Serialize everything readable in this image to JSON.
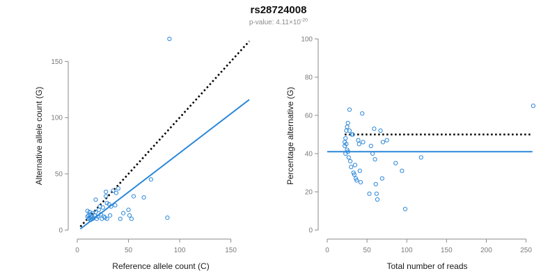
{
  "header": {
    "title": "rs28724008",
    "subtitle_prefix": "p-value: 4.11×10",
    "subtitle_exponent": "-20"
  },
  "colors": {
    "accent": "#2b87d8",
    "reference": "#000000",
    "axis": "#8a8a8a"
  },
  "chart_data": [
    {
      "type": "scatter",
      "title": "",
      "xlabel": "Reference allele count (C)",
      "ylabel": "Alternative allele count (G)",
      "xlim": [
        0,
        170
      ],
      "ylim": [
        0,
        170
      ],
      "x_ticks": [
        0,
        50,
        100,
        150
      ],
      "y_ticks": [
        0,
        50,
        100,
        150
      ],
      "x_tick_labels": [
        "0",
        "50",
        "100",
        "150"
      ],
      "y_tick_labels": [
        "0",
        "50",
        "100",
        "150"
      ],
      "grid": false,
      "legend": "none",
      "reference_line": {
        "style": "dotted",
        "color": "#000000",
        "from": [
          3,
          3
        ],
        "to": [
          168,
          168
        ]
      },
      "fit_line": {
        "style": "solid",
        "color": "#2b87d8",
        "from": [
          3,
          1
        ],
        "to": [
          168,
          116
        ]
      },
      "points": [
        {
          "x": 90,
          "y": 170
        },
        {
          "x": 88,
          "y": 11
        },
        {
          "x": 72,
          "y": 45
        },
        {
          "x": 65,
          "y": 29
        },
        {
          "x": 55,
          "y": 30
        },
        {
          "x": 53,
          "y": 10
        },
        {
          "x": 51,
          "y": 13
        },
        {
          "x": 50,
          "y": 18
        },
        {
          "x": 45,
          "y": 15
        },
        {
          "x": 42,
          "y": 10
        },
        {
          "x": 40,
          "y": 37
        },
        {
          "x": 38,
          "y": 33
        },
        {
          "x": 37,
          "y": 22
        },
        {
          "x": 35,
          "y": 35
        },
        {
          "x": 33,
          "y": 21
        },
        {
          "x": 32,
          "y": 13
        },
        {
          "x": 31,
          "y": 23
        },
        {
          "x": 29,
          "y": 24
        },
        {
          "x": 29,
          "y": 10
        },
        {
          "x": 28,
          "y": 34
        },
        {
          "x": 28,
          "y": 30
        },
        {
          "x": 27,
          "y": 11
        },
        {
          "x": 26,
          "y": 12
        },
        {
          "x": 25,
          "y": 20
        },
        {
          "x": 24,
          "y": 10
        },
        {
          "x": 23,
          "y": 14
        },
        {
          "x": 22,
          "y": 21
        },
        {
          "x": 21,
          "y": 18
        },
        {
          "x": 20,
          "y": 12
        },
        {
          "x": 19,
          "y": 10
        },
        {
          "x": 18,
          "y": 27
        },
        {
          "x": 18,
          "y": 16
        },
        {
          "x": 17,
          "y": 13
        },
        {
          "x": 16,
          "y": 11
        },
        {
          "x": 15,
          "y": 10
        },
        {
          "x": 15,
          "y": 15
        },
        {
          "x": 14,
          "y": 12
        },
        {
          "x": 13,
          "y": 14
        },
        {
          "x": 13,
          "y": 9
        },
        {
          "x": 12,
          "y": 11
        },
        {
          "x": 12,
          "y": 16
        },
        {
          "x": 11,
          "y": 13
        },
        {
          "x": 11,
          "y": 10
        },
        {
          "x": 10,
          "y": 17
        },
        {
          "x": 10,
          "y": 12
        }
      ]
    },
    {
      "type": "scatter",
      "title": "",
      "xlabel": "Total number of reads",
      "ylabel": "Percentage alternative (G)",
      "xlim": [
        0,
        260
      ],
      "ylim": [
        0,
        100
      ],
      "x_ticks": [
        0,
        50,
        100,
        150,
        200,
        250
      ],
      "y_ticks": [
        0,
        20,
        40,
        60,
        80,
        100
      ],
      "x_tick_labels": [
        "0",
        "50",
        "100",
        "150",
        "200",
        "250"
      ],
      "y_tick_labels": [
        "0",
        "20",
        "40",
        "60",
        "80",
        "100"
      ],
      "grid": false,
      "legend": "none",
      "reference_line": {
        "style": "dotted",
        "color": "#000000",
        "y": 50,
        "x_range": [
          22,
          258
        ]
      },
      "fit_line": {
        "style": "solid",
        "color": "#2b87d8",
        "y": 41,
        "x_range": [
          0,
          258
        ]
      },
      "points": [
        {
          "x": 259,
          "y": 65
        },
        {
          "x": 118,
          "y": 38
        },
        {
          "x": 98,
          "y": 11
        },
        {
          "x": 94,
          "y": 31
        },
        {
          "x": 86,
          "y": 35
        },
        {
          "x": 75,
          "y": 47
        },
        {
          "x": 70,
          "y": 46
        },
        {
          "x": 69,
          "y": 27
        },
        {
          "x": 67,
          "y": 52
        },
        {
          "x": 63,
          "y": 16
        },
        {
          "x": 62,
          "y": 19
        },
        {
          "x": 61,
          "y": 24
        },
        {
          "x": 60,
          "y": 37
        },
        {
          "x": 59,
          "y": 53
        },
        {
          "x": 57,
          "y": 40
        },
        {
          "x": 55,
          "y": 44
        },
        {
          "x": 53,
          "y": 19
        },
        {
          "x": 45,
          "y": 46
        },
        {
          "x": 44,
          "y": 61
        },
        {
          "x": 42,
          "y": 25
        },
        {
          "x": 41,
          "y": 31
        },
        {
          "x": 40,
          "y": 45
        },
        {
          "x": 39,
          "y": 47
        },
        {
          "x": 37,
          "y": 26
        },
        {
          "x": 36,
          "y": 27
        },
        {
          "x": 35,
          "y": 34
        },
        {
          "x": 34,
          "y": 29
        },
        {
          "x": 33,
          "y": 30
        },
        {
          "x": 32,
          "y": 50
        },
        {
          "x": 31,
          "y": 50
        },
        {
          "x": 30,
          "y": 33
        },
        {
          "x": 29,
          "y": 36
        },
        {
          "x": 28,
          "y": 63
        },
        {
          "x": 28,
          "y": 52
        },
        {
          "x": 27,
          "y": 38
        },
        {
          "x": 26,
          "y": 41
        },
        {
          "x": 26,
          "y": 56
        },
        {
          "x": 25,
          "y": 54
        },
        {
          "x": 25,
          "y": 42
        },
        {
          "x": 24,
          "y": 45
        },
        {
          "x": 24,
          "y": 52
        },
        {
          "x": 23,
          "y": 48
        },
        {
          "x": 23,
          "y": 40
        },
        {
          "x": 22,
          "y": 46
        },
        {
          "x": 22,
          "y": 44
        }
      ]
    }
  ]
}
